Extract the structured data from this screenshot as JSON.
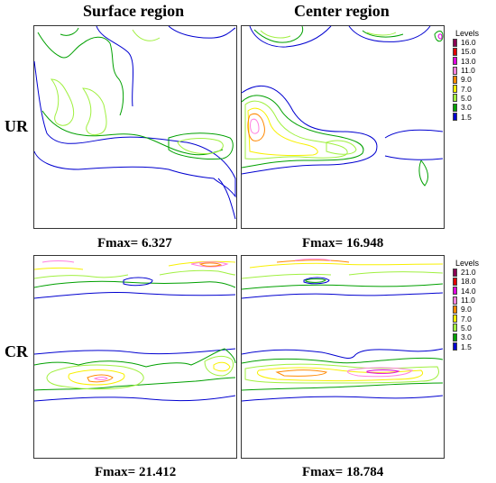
{
  "columns": [
    "Surface region",
    "Center region"
  ],
  "rows": [
    "UR",
    "CR"
  ],
  "fmax": [
    "Fmax= 6.327",
    "Fmax= 16.948",
    "Fmax= 21.412",
    "Fmax= 18.784"
  ],
  "legends": [
    {
      "title": "Levels",
      "levels": [
        "16.0",
        "15.0",
        "13.0",
        "11.0",
        "9.0",
        "7.0",
        "5.0",
        "3.0",
        "1.5"
      ],
      "colors": [
        "#8a0052",
        "#e00000",
        "#e000e0",
        "#ff80e0",
        "#ff8800",
        "#f8f000",
        "#a0f040",
        "#00a000",
        "#0000d0"
      ]
    },
    {
      "title": "Levels",
      "levels": [
        "21.0",
        "18.0",
        "14.0",
        "11.0",
        "9.0",
        "7.0",
        "5.0",
        "3.0",
        "1.5"
      ],
      "colors": [
        "#8a0052",
        "#e00000",
        "#e000e0",
        "#ff80e0",
        "#ff8800",
        "#f8f000",
        "#a0f040",
        "#00a000",
        "#0000d0"
      ]
    }
  ]
}
